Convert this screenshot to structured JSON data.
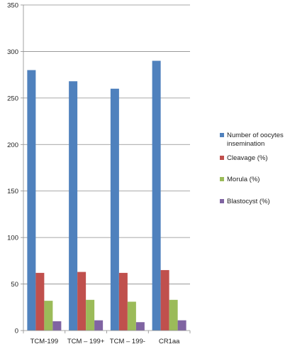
{
  "chart_data": {
    "type": "bar",
    "title": "",
    "xlabel": "",
    "ylabel": "",
    "categories": [
      "TCM-199",
      "TCM – 199+",
      "TCM – 199-",
      "CR1aa"
    ],
    "ylim": [
      0,
      350
    ],
    "yticks": [
      0,
      50,
      100,
      150,
      200,
      250,
      300,
      350
    ],
    "grid": true,
    "legend_position": "right",
    "series": [
      {
        "name": "Number of oocytes insemination",
        "legend_lines": [
          "Number of oocytes",
          "insemination"
        ],
        "color": "#4f81bd",
        "values": [
          280,
          268,
          260,
          290
        ]
      },
      {
        "name": "Cleavage (%)",
        "legend_lines": [
          "Cleavage (%)"
        ],
        "color": "#c0504d",
        "values": [
          62,
          63,
          62,
          65
        ]
      },
      {
        "name": "Morula (%)",
        "legend_lines": [
          "Morula (%)"
        ],
        "color": "#9bbb59",
        "values": [
          32,
          33,
          31,
          33
        ]
      },
      {
        "name": "Blastocyst (%)",
        "legend_lines": [
          "Blastocyst (%)"
        ],
        "color": "#8064a2",
        "values": [
          10,
          11,
          9,
          11
        ]
      }
    ]
  }
}
